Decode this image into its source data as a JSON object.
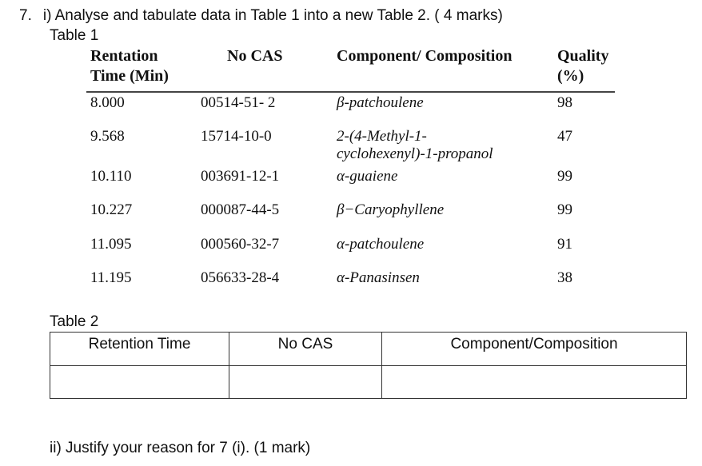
{
  "question": {
    "number": "7.",
    "part_i": "i) Analyse and tabulate data in Table 1 into a new Table 2. ( 4 marks)",
    "part_ii": "ii) Justify your reason for 7 (i). (1 mark)"
  },
  "table1": {
    "title": "Table 1",
    "headers": {
      "retention_line1": "Rentation",
      "retention_line2": "Time (Min)",
      "cas": "No CAS",
      "component": "Component/ Composition",
      "quality_line1": "Quality",
      "quality_line2": "(%)"
    },
    "rows": [
      {
        "time": "8.000",
        "cas": "00514-51- 2",
        "component": "β-patchoulene",
        "quality": "98"
      },
      {
        "time": "9.568",
        "cas": "15714-10-0",
        "component_line1": "2-(4-Methyl-1-",
        "component_line2": "cyclohexenyl)-1-propanol",
        "quality": "47"
      },
      {
        "time": "10.110",
        "cas": "003691-12-1",
        "component": "α-guaiene",
        "quality": "99"
      },
      {
        "time": "10.227",
        "cas": "000087-44-5",
        "component": "β−Caryophyllene",
        "quality": "99"
      },
      {
        "time": "11.095",
        "cas": "000560-32-7",
        "component": "α-patchoulene",
        "quality": "91"
      },
      {
        "time": "11.195",
        "cas": "056633-28-4",
        "component": "α-Panasinsen",
        "quality": "38"
      }
    ]
  },
  "table2": {
    "title": "Table 2",
    "headers": {
      "retention": "Retention Time",
      "cas": "No CAS",
      "component": "Component/Composition"
    }
  }
}
